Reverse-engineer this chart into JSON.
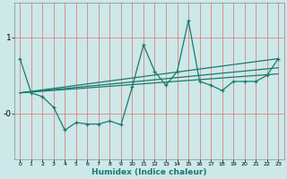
{
  "xlabel": "Humidex (Indice chaleur)",
  "ylabel": "",
  "bg_color": "#cce8e8",
  "grid_color": "#e08080",
  "line_color": "#1a7a6e",
  "xlim": [
    -0.5,
    23.5
  ],
  "ylim": [
    -0.6,
    1.45
  ],
  "x_ticks": [
    0,
    1,
    2,
    3,
    4,
    5,
    6,
    7,
    8,
    9,
    10,
    11,
    12,
    13,
    14,
    15,
    16,
    17,
    18,
    19,
    20,
    21,
    22,
    23
  ],
  "x_tick_labels": [
    "0",
    "1",
    "2",
    "3",
    "4",
    "5",
    "6",
    "7",
    "8",
    "9",
    "10",
    "11",
    "12",
    "13",
    "14",
    "15",
    "16",
    "17",
    "18",
    "19",
    "20",
    "21",
    "22",
    "23"
  ],
  "y_ticks": [
    0.0,
    1.0
  ],
  "y_tick_labels": [
    "-0",
    "1"
  ],
  "main_line_x": [
    0,
    1,
    2,
    3,
    4,
    5,
    6,
    7,
    8,
    9,
    10,
    11,
    12,
    13,
    14,
    15,
    16,
    17,
    18,
    19,
    20,
    21,
    22,
    23
  ],
  "main_line_y": [
    0.72,
    0.27,
    0.22,
    0.08,
    -0.22,
    -0.12,
    -0.14,
    -0.14,
    -0.1,
    -0.15,
    0.35,
    0.9,
    0.55,
    0.37,
    0.55,
    1.22,
    0.42,
    0.37,
    0.3,
    0.42,
    0.42,
    0.42,
    0.5,
    0.72
  ],
  "upper_line_x": [
    0,
    23
  ],
  "upper_line_y": [
    0.27,
    0.72
  ],
  "lower_line_x": [
    0,
    23
  ],
  "lower_line_y": [
    0.27,
    0.52
  ],
  "mid_line_x": [
    0,
    23
  ],
  "mid_line_y": [
    0.27,
    0.6
  ]
}
